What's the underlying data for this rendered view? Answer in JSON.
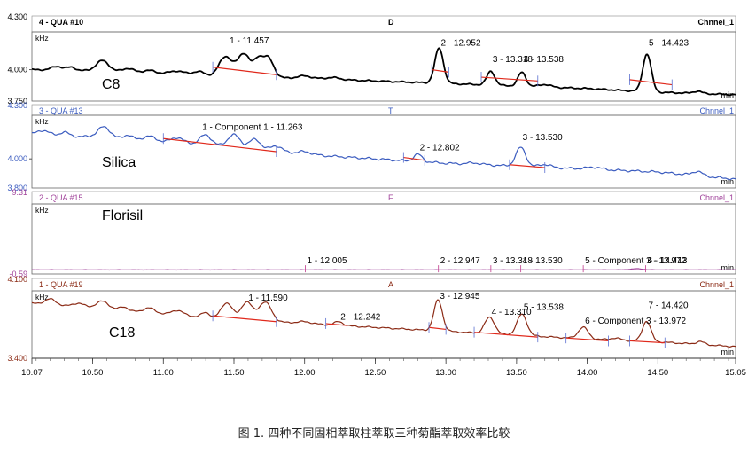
{
  "caption": "图 1. 四种不同固相萃取柱萃取三种菊酯萃取效率比较",
  "chart_data": {
    "type": "line",
    "xlim": [
      10.07,
      15.05
    ],
    "x_ticks": [
      "10.07",
      "10.50",
      "11.00",
      "11.50",
      "12.00",
      "12.50",
      "13.00",
      "13.50",
      "14.00",
      "14.50",
      "15.05"
    ],
    "x_tick_values": [
      10.07,
      10.5,
      11.0,
      11.5,
      12.0,
      12.5,
      13.0,
      13.5,
      14.0,
      14.5,
      15.05
    ],
    "x_unit": "min",
    "y_unit": "kHz",
    "panels": [
      {
        "header": "4 - QUA #10",
        "mode": "D",
        "channel": "Chnnel_1",
        "label": "C8",
        "color": "#000000",
        "ylim": [
          3.75,
          4.3
        ],
        "y_top_label": "4.300",
        "y_mid_label": "4.000",
        "y_bottom_label": "3.750",
        "baseline": [
          [
            10.07,
            4.0
          ],
          [
            10.5,
            3.99
          ],
          [
            11.0,
            3.97
          ],
          [
            11.5,
            3.94
          ],
          [
            12.0,
            3.93
          ],
          [
            12.5,
            3.91
          ],
          [
            13.0,
            3.89
          ],
          [
            13.5,
            3.87
          ],
          [
            14.0,
            3.85
          ],
          [
            14.5,
            3.82
          ],
          [
            14.8,
            3.81
          ],
          [
            15.05,
            3.8
          ]
        ],
        "wiggle": 0.006,
        "features": [
          [
            10.25,
            0.03,
            0.04
          ],
          [
            10.35,
            0.025,
            0.03
          ],
          [
            10.57,
            0.085,
            0.045
          ],
          [
            10.75,
            0.03,
            0.04
          ],
          [
            10.9,
            0.02,
            0.04
          ],
          [
            11.1,
            0.025,
            0.05
          ],
          [
            11.25,
            0.03,
            0.04
          ],
          [
            11.44,
            0.16,
            0.045
          ],
          [
            11.57,
            0.19,
            0.045
          ],
          [
            11.67,
            0.12,
            0.03
          ],
          [
            11.74,
            0.16,
            0.04
          ],
          [
            12.0,
            0.02,
            0.05
          ],
          [
            12.2,
            0.015,
            0.05
          ],
          [
            12.952,
            0.28,
            0.03
          ],
          [
            13.318,
            0.11,
            0.028
          ],
          [
            13.538,
            0.11,
            0.028
          ],
          [
            13.7,
            0.02,
            0.04
          ],
          [
            14.423,
            0.3,
            0.03
          ],
          [
            14.78,
            0.018,
            0.03
          ]
        ],
        "peaks": [
          {
            "label": "1 - 11.457",
            "x": 11.457,
            "y": 4.21
          },
          {
            "label": "2 - 12.952",
            "x": 12.952,
            "y": 4.19
          },
          {
            "label": "3 - 13.318",
            "x": 13.318,
            "y": 4.06
          },
          {
            "label": "4 - 13.538",
            "x": 13.538,
            "y": 4.06
          },
          {
            "label": "5 - 14.423",
            "x": 14.423,
            "y": 4.19
          }
        ],
        "integration": [
          [
            11.35,
            4.02,
            11.8,
            3.96
          ],
          [
            12.9,
            4.0,
            13.02,
            3.98
          ],
          [
            13.25,
            3.94,
            13.65,
            3.91
          ],
          [
            14.3,
            3.92,
            14.6,
            3.88
          ]
        ]
      },
      {
        "header": "3 - QUA #13",
        "mode": "T",
        "channel": "Chnnel_1",
        "label": "Silica",
        "color": "#3a5bbf",
        "ylim": [
          3.8,
          4.3
        ],
        "y_top_label": "4.300",
        "y_mid_label": "4.000",
        "y_bottom_label": "3.800",
        "baseline": [
          [
            10.07,
            4.17
          ],
          [
            10.5,
            4.15
          ],
          [
            11.0,
            4.12
          ],
          [
            11.5,
            4.08
          ],
          [
            12.0,
            4.03
          ],
          [
            12.5,
            4.0
          ],
          [
            13.0,
            3.97
          ],
          [
            13.5,
            3.95
          ],
          [
            14.0,
            3.93
          ],
          [
            14.5,
            3.91
          ],
          [
            15.05,
            3.86
          ]
        ],
        "wiggle": 0.008,
        "features": [
          [
            10.15,
            0.03,
            0.04
          ],
          [
            10.3,
            0.025,
            0.03
          ],
          [
            10.58,
            0.075,
            0.045
          ],
          [
            10.75,
            0.03,
            0.03
          ],
          [
            10.9,
            0.03,
            0.04
          ],
          [
            11.1,
            0.035,
            0.04
          ],
          [
            11.3,
            0.07,
            0.04
          ],
          [
            11.5,
            0.085,
            0.045
          ],
          [
            11.65,
            0.07,
            0.04
          ],
          [
            11.8,
            0.04,
            0.04
          ],
          [
            12.0,
            0.02,
            0.05
          ],
          [
            12.802,
            0.05,
            0.03
          ],
          [
            13.2,
            0.01,
            0.05
          ],
          [
            13.53,
            0.13,
            0.035
          ],
          [
            13.7,
            0.02,
            0.04
          ],
          [
            14.05,
            0.015,
            0.05
          ],
          [
            14.78,
            0.03,
            0.035
          ]
        ],
        "peaks": [
          {
            "label": "1 - Component 1 - 11.263",
            "x": 11.263,
            "y": 4.2
          },
          {
            "label": "2 - 12.802",
            "x": 12.802,
            "y": 4.06
          },
          {
            "label": "3 - 13.530",
            "x": 13.53,
            "y": 4.13
          }
        ],
        "integration": [
          [
            11.0,
            4.14,
            11.8,
            4.05
          ],
          [
            12.7,
            4.01,
            12.85,
            3.99
          ],
          [
            13.45,
            3.96,
            13.7,
            3.94
          ]
        ]
      },
      {
        "header": "2 - QUA #15",
        "mode": "F",
        "channel": "Chnnel_1",
        "label": "Florisil",
        "color": "#a0429a",
        "ylim": [
          -0.59,
          9.31
        ],
        "y_top_label": "9.31",
        "y_mid_label": "",
        "y_bottom_label": "-0.59",
        "baseline": [
          [
            10.07,
            0.0
          ],
          [
            15.05,
            0.0
          ]
        ],
        "wiggle": 0.02,
        "features": [
          [
            14.35,
            0.15,
            0.04
          ]
        ],
        "peaks": [
          {
            "label": "1 - 12.005",
            "x": 12.005,
            "y": 0.9
          },
          {
            "label": "2 - 12.947",
            "x": 12.947,
            "y": 0.9
          },
          {
            "label": "3 - 13.318",
            "x": 13.318,
            "y": 0.9
          },
          {
            "label": "4 - 13.530",
            "x": 13.53,
            "y": 0.9
          },
          {
            "label": "5 - Component 3 - 13.972",
            "x": 13.972,
            "y": 0.9
          },
          {
            "label": "6 - 14.413",
            "x": 14.413,
            "y": 0.9
          }
        ],
        "integration": []
      },
      {
        "header": "1 - QUA #19",
        "mode": "A",
        "channel": "Chnnel_1",
        "label": "C18",
        "color": "#8b2a15",
        "ylim": [
          3.4,
          4.1
        ],
        "y_top_label": "4.100",
        "y_mid_label": "",
        "y_bottom_label": "3.400",
        "baseline": [
          [
            10.07,
            3.97
          ],
          [
            10.5,
            3.92
          ],
          [
            11.0,
            3.86
          ],
          [
            11.5,
            3.8
          ],
          [
            12.0,
            3.76
          ],
          [
            12.5,
            3.72
          ],
          [
            13.0,
            3.68
          ],
          [
            13.5,
            3.64
          ],
          [
            14.0,
            3.6
          ],
          [
            14.5,
            3.57
          ],
          [
            15.05,
            3.52
          ]
        ],
        "wiggle": 0.008,
        "features": [
          [
            10.2,
            0.06,
            0.04
          ],
          [
            10.4,
            0.04,
            0.04
          ],
          [
            10.57,
            0.08,
            0.045
          ],
          [
            10.72,
            0.04,
            0.03
          ],
          [
            10.9,
            0.05,
            0.04
          ],
          [
            11.1,
            0.05,
            0.04
          ],
          [
            11.3,
            0.05,
            0.03
          ],
          [
            11.45,
            0.17,
            0.04
          ],
          [
            11.59,
            0.19,
            0.04
          ],
          [
            11.72,
            0.2,
            0.045
          ],
          [
            12.0,
            0.02,
            0.05
          ],
          [
            12.242,
            0.04,
            0.03
          ],
          [
            12.945,
            0.32,
            0.03
          ],
          [
            13.31,
            0.17,
            0.035
          ],
          [
            13.538,
            0.22,
            0.035
          ],
          [
            13.972,
            0.12,
            0.035
          ],
          [
            14.2,
            0.02,
            0.04
          ],
          [
            14.42,
            0.21,
            0.03
          ],
          [
            14.8,
            0.03,
            0.03
          ]
        ],
        "peaks": [
          {
            "label": "1 - 11.590",
            "x": 11.59,
            "y": 4.0
          },
          {
            "label": "2 - 12.242",
            "x": 12.242,
            "y": 3.8
          },
          {
            "label": "3 - 12.945",
            "x": 12.945,
            "y": 4.02
          },
          {
            "label": "4 - 13.310",
            "x": 13.31,
            "y": 3.85
          },
          {
            "label": "5 - 13.538",
            "x": 13.538,
            "y": 3.9
          },
          {
            "label": "6 - Component 3 - 13.972",
            "x": 13.972,
            "y": 3.76
          },
          {
            "label": "7 - 14.420",
            "x": 14.42,
            "y": 3.92
          }
        ],
        "integration": [
          [
            11.35,
            3.84,
            11.8,
            3.78
          ],
          [
            12.15,
            3.76,
            12.3,
            3.74
          ],
          [
            12.88,
            3.72,
            13.0,
            3.7
          ],
          [
            13.2,
            3.67,
            13.65,
            3.62
          ],
          [
            13.85,
            3.61,
            14.15,
            3.58
          ],
          [
            14.3,
            3.58,
            14.55,
            3.56
          ]
        ]
      }
    ]
  }
}
